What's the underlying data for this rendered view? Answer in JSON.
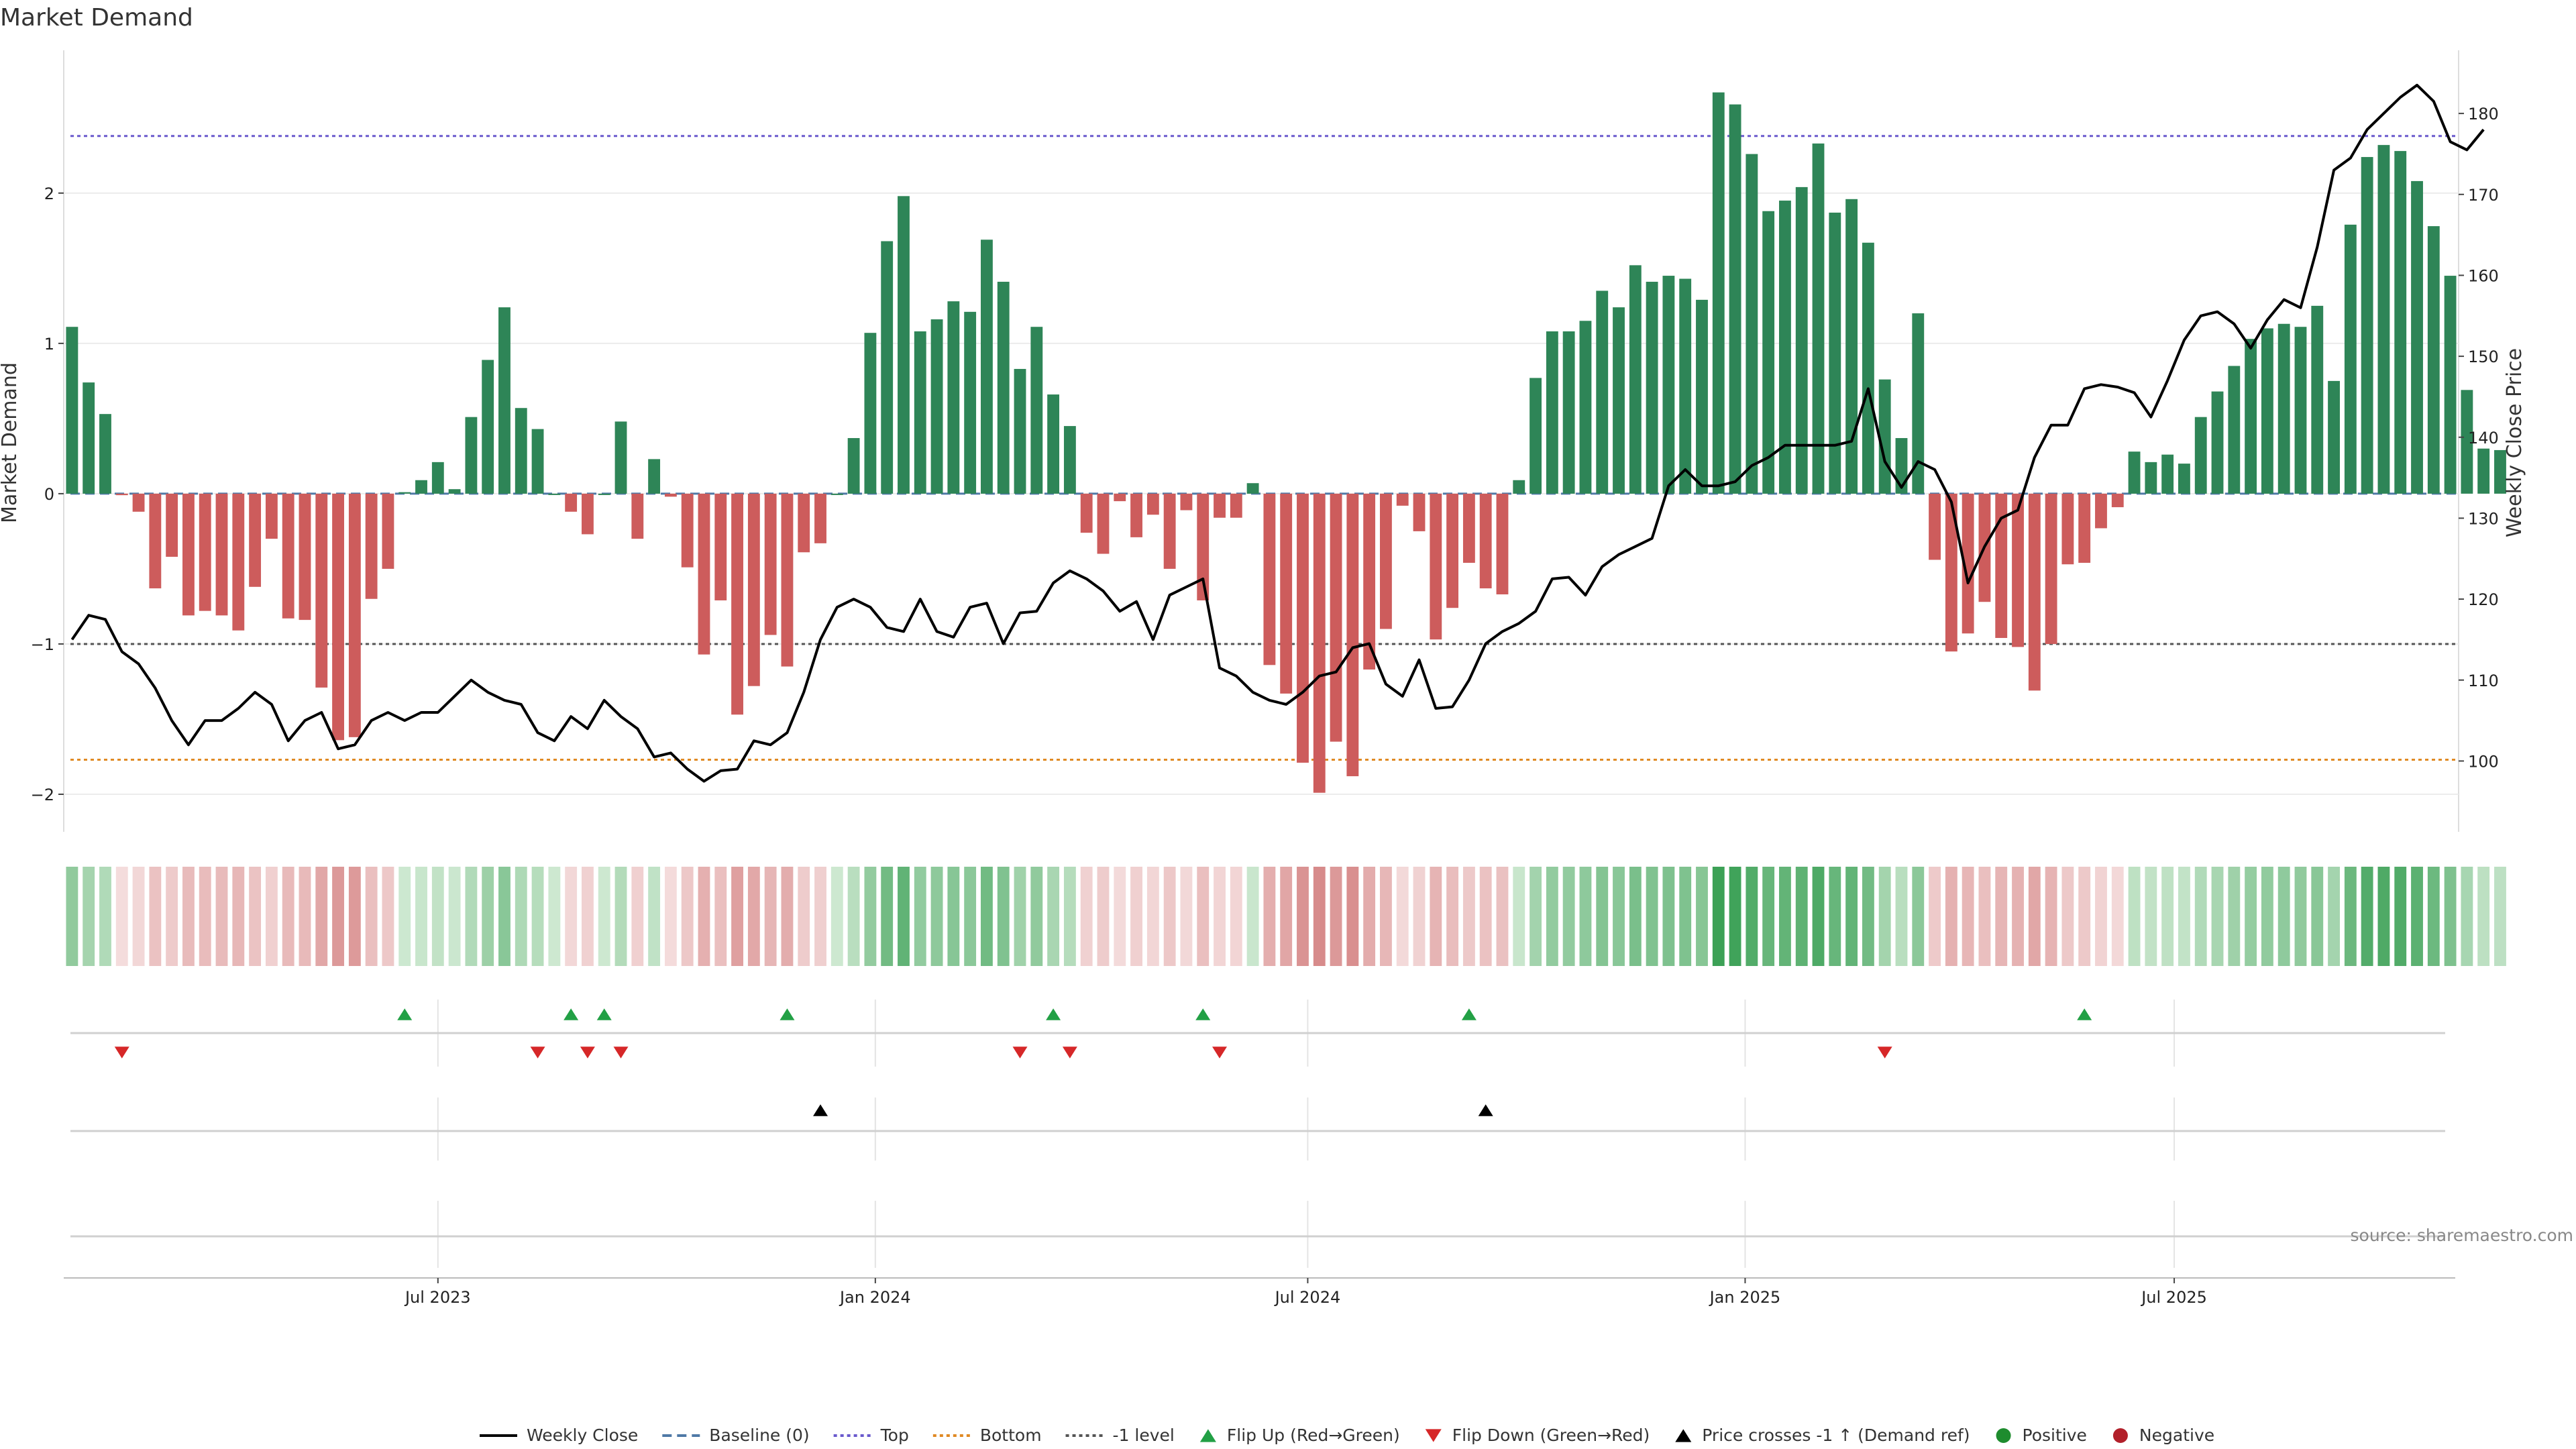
{
  "chart_data": {
    "type": "bar",
    "title": "Market Demand",
    "ylabel": "Market Demand",
    "y2label": "Weekly Close Price",
    "ylim": [
      -2.25,
      2.95
    ],
    "y2lim": [
      91.25,
      187.8
    ],
    "yticks": [
      -2,
      -1,
      0,
      1,
      2
    ],
    "yticklabels": [
      "−2",
      "−1",
      "0",
      "1",
      "2"
    ],
    "y2ticks": [
      100,
      110,
      120,
      130,
      140,
      150,
      160,
      170,
      180
    ],
    "x_week_range": [
      -0.5,
      143.5
    ],
    "x_ticks": [
      {
        "label": "Jul 2023",
        "week": 22
      },
      {
        "label": "Jan 2024",
        "week": 48.3
      },
      {
        "label": "Jul 2024",
        "week": 74.3
      },
      {
        "label": "Jan 2025",
        "week": 100.6
      },
      {
        "label": "Jul 2025",
        "week": 126.4
      }
    ],
    "reference_lines": {
      "top": 2.38,
      "bottom": -1.77,
      "minus_one": -1.0,
      "baseline": 0
    },
    "demand": [
      1.11,
      0.74,
      0.53,
      -0.01,
      -0.12,
      -0.63,
      -0.42,
      -0.81,
      -0.78,
      -0.81,
      -0.91,
      -0.62,
      -0.3,
      -0.83,
      -0.84,
      -1.29,
      -1.64,
      -1.62,
      -0.7,
      -0.5,
      0.01,
      0.09,
      0.21,
      0.03,
      0.51,
      0.89,
      1.24,
      0.57,
      0.43,
      0.0,
      -0.12,
      -0.27,
      0.0,
      0.48,
      -0.3,
      0.23,
      -0.02,
      -0.49,
      -1.07,
      -0.71,
      -1.47,
      -1.28,
      -0.94,
      -1.15,
      -0.39,
      -0.33,
      0.0,
      0.37,
      1.07,
      1.68,
      1.98,
      1.08,
      1.16,
      1.28,
      1.21,
      1.69,
      1.41,
      0.83,
      1.11,
      0.66,
      0.45,
      -0.26,
      -0.4,
      -0.05,
      -0.29,
      -0.14,
      -0.5,
      -0.11,
      -0.71,
      -0.16,
      -0.16,
      0.07,
      -1.14,
      -1.33,
      -1.79,
      -1.99,
      -1.65,
      -1.88,
      -1.17,
      -0.9,
      -0.08,
      -0.25,
      -0.97,
      -0.76,
      -0.46,
      -0.63,
      -0.67,
      0.09,
      0.77,
      1.08,
      1.08,
      1.15,
      1.35,
      1.24,
      1.52,
      1.41,
      1.45,
      1.43,
      1.29,
      2.67,
      2.59,
      2.26,
      1.88,
      1.95,
      2.04,
      2.33,
      1.87,
      1.96,
      1.67,
      0.76,
      0.37,
      1.2,
      -0.44,
      -1.05,
      -0.93,
      -0.72,
      -0.96,
      -1.02,
      -1.31,
      -1.0,
      -0.47,
      -0.46,
      -0.23,
      -0.09,
      0.28,
      0.21,
      0.26,
      0.2,
      0.51,
      0.68,
      0.85,
      1.03,
      1.1,
      1.13,
      1.11,
      1.25,
      0.75,
      1.79,
      2.24,
      2.32,
      2.28,
      2.08,
      1.78,
      1.45,
      0.69,
      0.3,
      0.29
    ],
    "weekly_close": [
      115,
      118,
      117.5,
      113.5,
      112,
      109,
      105,
      102,
      105,
      105,
      106.5,
      108.5,
      107,
      102.5,
      105,
      106,
      101.5,
      102,
      105,
      106,
      105,
      106,
      106,
      108,
      110,
      108.5,
      107.5,
      107,
      103.5,
      102.5,
      105.5,
      104,
      107.5,
      105.5,
      104,
      100.5,
      101,
      99,
      97.5,
      98.8,
      99,
      102.5,
      102,
      103.5,
      108.5,
      115,
      119,
      120,
      119,
      116.5,
      116,
      120,
      116,
      115.3,
      119,
      119.5,
      114.5,
      118.3,
      118.5,
      122,
      123.5,
      122.5,
      121,
      118.5,
      119.7,
      115,
      120.5,
      121.5,
      122.5,
      111.5,
      110.5,
      108.5,
      107.5,
      107,
      108.5,
      110.5,
      111,
      114,
      114.5,
      109.5,
      108,
      112.5,
      106.5,
      106.7,
      110,
      114.5,
      116,
      117,
      118.5,
      122.5,
      122.7,
      120.5,
      124,
      125.5,
      126.5,
      127.5,
      134,
      136,
      134,
      134,
      134.5,
      136.5,
      137.5,
      139,
      139,
      139,
      139,
      139.5,
      146,
      137,
      133.8,
      137,
      136,
      132,
      122,
      126.5,
      130,
      131,
      137.5,
      141.5,
      141.5,
      146,
      146.5,
      146.2,
      145.5,
      142.5,
      147,
      152,
      155,
      155.5,
      154,
      151,
      154.5,
      157,
      156,
      163.5,
      173,
      174.5,
      178,
      180,
      182,
      183.5,
      181.5,
      176.5,
      175.5,
      178
    ],
    "flip_up_weeks": [
      20,
      30,
      32,
      43,
      59,
      68,
      84,
      121
    ],
    "flip_down_weeks": [
      3,
      28,
      31,
      33,
      57,
      60,
      69,
      109
    ],
    "price_cross_weeks": [
      45,
      85
    ],
    "legend": [
      {
        "label": "Weekly Close",
        "kind": "line",
        "color": "#000000"
      },
      {
        "label": "Baseline (0)",
        "kind": "dashline",
        "color": "#4f79a6"
      },
      {
        "label": "Top",
        "kind": "dotline",
        "color": "#6a5acd"
      },
      {
        "label": "Bottom",
        "kind": "dotline",
        "color": "#e08a24"
      },
      {
        "label": "-1 level",
        "kind": "dotline",
        "color": "#555555"
      },
      {
        "label": "Flip Up (Red→Green)",
        "kind": "tri-up",
        "color": "#22a045"
      },
      {
        "label": "Flip Down (Green→Red)",
        "kind": "tri-down",
        "color": "#d62728"
      },
      {
        "label": "Price crosses -1 ↑ (Demand ref)",
        "kind": "tri-up",
        "color": "#000000"
      },
      {
        "label": "Positive",
        "kind": "dot",
        "color": "#1e8c2e"
      },
      {
        "label": "Negative",
        "kind": "dot",
        "color": "#b2202a"
      }
    ],
    "source": "source: sharemaestro.com"
  },
  "colors": {
    "positive_bar": "#2e8557",
    "negative_bar": "#cd5c5c",
    "price_line": "#000000",
    "baseline": "#4f79a6",
    "top": "#6a5acd",
    "bottom": "#e08a24",
    "minus_one": "#555555",
    "flip_up": "#22a045",
    "flip_down": "#d62728",
    "price_cross": "#000000"
  }
}
